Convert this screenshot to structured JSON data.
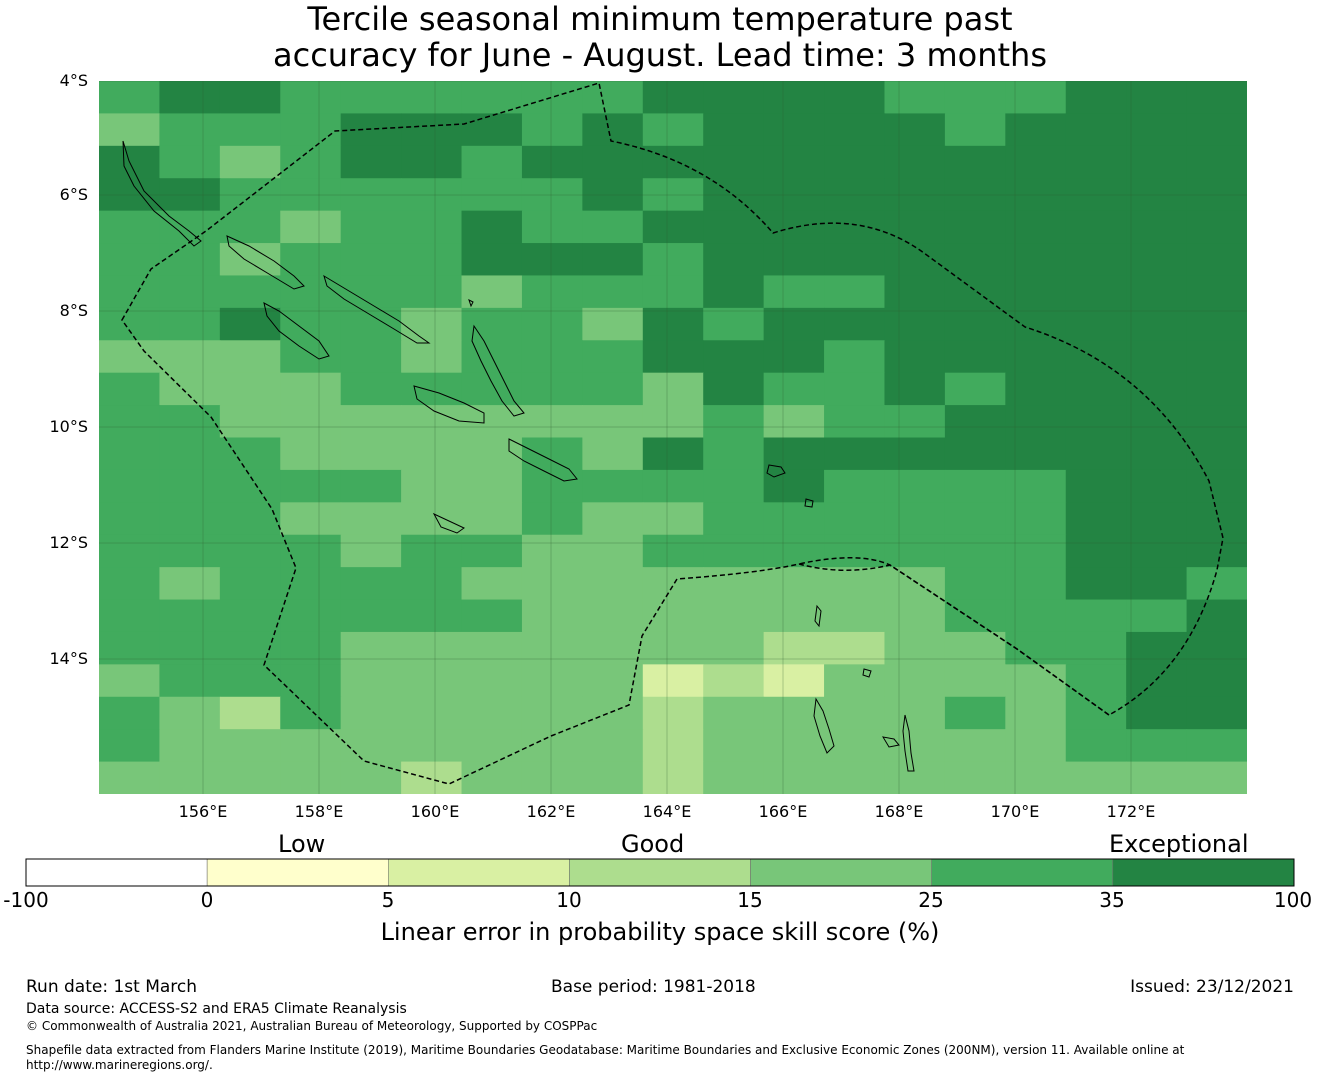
{
  "title": {
    "line1": "Tercile seasonal minimum temperature past",
    "line2": "accuracy for June - August. Lead time: 3 months"
  },
  "map": {
    "lat_labels": [
      "4°S",
      "6°S",
      "8°S",
      "10°S",
      "12°S",
      "14°S"
    ],
    "lon_labels": [
      "156°E",
      "158°E",
      "160°E",
      "162°E",
      "164°E",
      "166°E",
      "168°E",
      "170°E",
      "172°E"
    ],
    "colors": [
      "#ffffff",
      "#ffffcc",
      "#d9f0a3",
      "#addd8e",
      "#78c679",
      "#41ab5d",
      "#238443"
    ],
    "grid": [
      "5665555556666555666",
      "4555666565666656666",
      "6545665666666666666",
      "6655555565666666666",
      "5554556556666666666",
      "5545556665666666666",
      "5555554555655666666",
      "5565545546566666666",
      "4445545556665666666",
      "5444555554655656666",
      "5544444444545566666",
      "5554444546566666666",
      "5555544555565555666",
      "5554444544555555666",
      "5555455445555555666",
      "5455554444444455665",
      "5555555444444455556",
      "5555444444433445566",
      "4555444442324444566",
      "5435444443444454566",
      "5444444443444444555",
      "4444434443444444444"
    ]
  },
  "colorbar": {
    "categories": {
      "low": "Low",
      "good": "Good",
      "exceptional": "Exceptional"
    },
    "ticks": [
      "-100",
      "0",
      "5",
      "10",
      "15",
      "25",
      "35",
      "100"
    ],
    "colors": [
      "#ffffff",
      "#ffffcc",
      "#d9f0a3",
      "#addd8e",
      "#78c679",
      "#41ab5d",
      "#238443"
    ],
    "label": "Linear error in probability space skill score (%)"
  },
  "footer": {
    "run_date": "Run date: 1st March",
    "base_period": "Base period: 1981-2018",
    "issued": "Issued: 23/12/2021",
    "data_source": "Data source: ACCESS-S2 and ERA5 Climate Reanalysis",
    "copyright": "© Commonwealth of Australia 2021, Australian Bureau of Meteorology, Supported by COSPPac",
    "shapefile_line1": "Shapefile data extracted from Flanders Marine Institute (2019), Maritime Boundaries Geodatabase: Maritime Boundaries and Exclusive Economic Zones (200NM), version 11. Available online at",
    "shapefile_line2": "http://www.marineregions.org/."
  }
}
